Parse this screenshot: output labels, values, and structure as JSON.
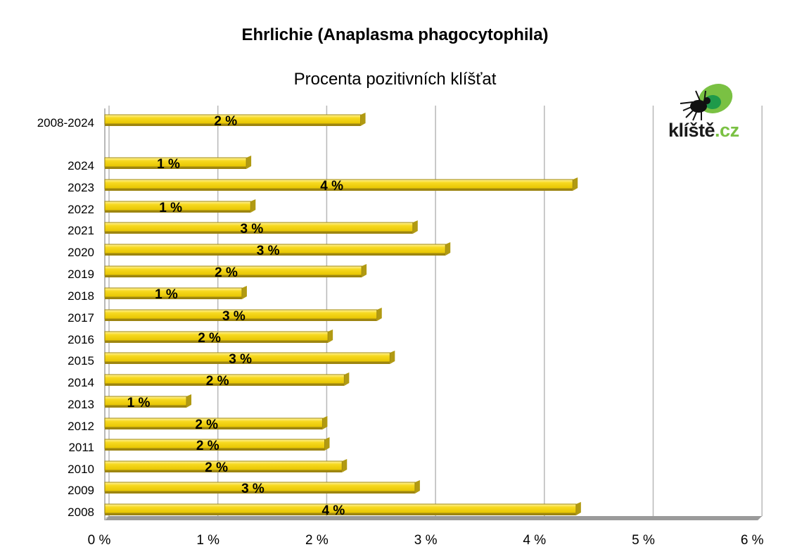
{
  "chart_data": {
    "type": "bar",
    "orientation": "horizontal",
    "title": "Ehrlichie (Anaplasma phagocytophila)",
    "subtitle": "Procenta pozitivních klíšťat",
    "categories": [
      "2008-2024",
      "2024",
      "2023",
      "2022",
      "2021",
      "2020",
      "2019",
      "2018",
      "2017",
      "2016",
      "2015",
      "2014",
      "2013",
      "2012",
      "2011",
      "2010",
      "2009",
      "2008"
    ],
    "values": [
      2.35,
      1.3,
      4.3,
      1.34,
      2.83,
      3.13,
      2.36,
      1.26,
      2.5,
      2.05,
      2.62,
      2.2,
      0.75,
      2.0,
      2.02,
      2.18,
      2.85,
      4.33
    ],
    "data_labels": [
      "2 %",
      "1 %",
      "4 %",
      "1 %",
      "3 %",
      "3 %",
      "2 %",
      "1 %",
      "3 %",
      "2 %",
      "3 %",
      "2 %",
      "1 %",
      "2 %",
      "2 %",
      "2 %",
      "3 %",
      "4 %"
    ],
    "xlim": [
      0,
      6
    ],
    "xticks": [
      "0 %",
      "1 %",
      "2 %",
      "3 %",
      "4 %",
      "5 %",
      "6 %"
    ],
    "grid": "vertical",
    "bar_color": "#f7d91f",
    "bar_edge_color": "#a08a10"
  },
  "logo": {
    "text_main": "klíště",
    "text_tld": ".cz",
    "accent_color": "#7ac143"
  }
}
